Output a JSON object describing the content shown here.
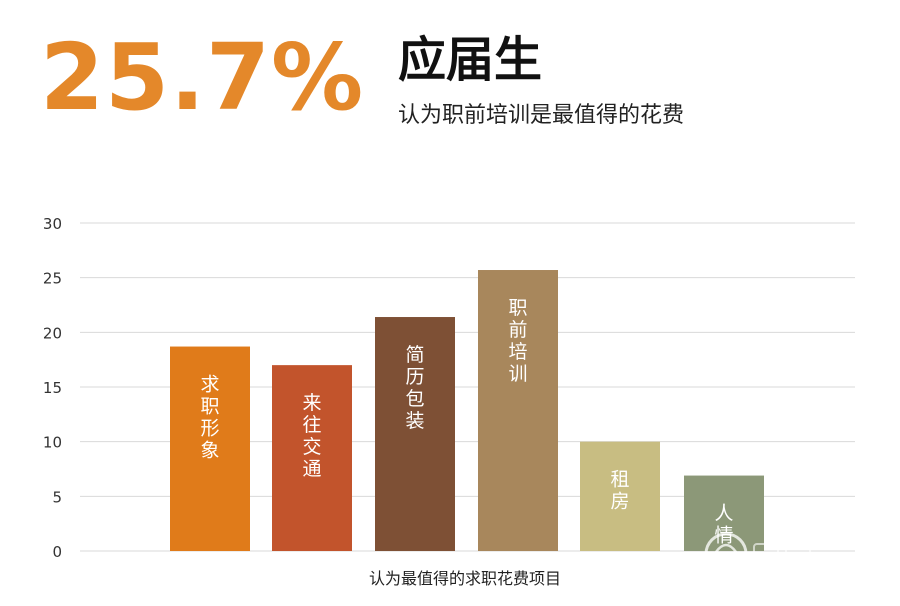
{
  "header": {
    "big_percent": "25.7%",
    "headline": "应届生",
    "subline": "认为职前培训是最值得的花费"
  },
  "colors": {
    "accent": "#E4882A",
    "bar_colors": [
      "#E07B1A",
      "#C2542C",
      "#7E5035",
      "#A8875C",
      "#C8BD82",
      "#8C9878"
    ],
    "grid": "#d9d9d9"
  },
  "chart_data": {
    "type": "bar",
    "categories": [
      "求职形象",
      "来往交通",
      "简历包装",
      "职前培训",
      "租房",
      "人情"
    ],
    "values": [
      18.7,
      17.0,
      21.4,
      25.7,
      10.0,
      6.9
    ],
    "title": "",
    "xlabel": "认为最值得的求职花费项目",
    "ylabel": "",
    "ylim": [
      0,
      30
    ],
    "yticks": [
      0,
      5,
      10,
      15,
      20,
      25,
      30
    ],
    "grid": true,
    "legend": "none"
  }
}
